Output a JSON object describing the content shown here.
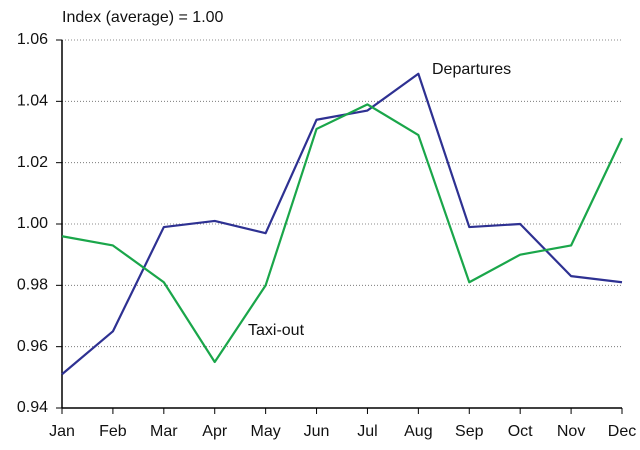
{
  "chart_data": {
    "type": "line",
    "y_axis_label": "Index (average) = 1.00",
    "categories": [
      "Jan",
      "Feb",
      "Mar",
      "Apr",
      "May",
      "Jun",
      "Jul",
      "Aug",
      "Sep",
      "Oct",
      "Nov",
      "Dec"
    ],
    "series": [
      {
        "name": "Departures",
        "color": "#2e3192",
        "values": [
          0.951,
          0.965,
          0.999,
          1.001,
          0.997,
          1.034,
          1.037,
          1.049,
          0.999,
          1.0,
          0.983,
          0.981
        ]
      },
      {
        "name": "Taxi-out",
        "color": "#1aa64a",
        "values": [
          0.996,
          0.993,
          0.981,
          0.955,
          0.98,
          1.031,
          1.039,
          1.029,
          0.981,
          0.99,
          0.993,
          1.028
        ]
      }
    ],
    "ylim": [
      0.94,
      1.06
    ],
    "yticks": [
      0.94,
      0.96,
      0.98,
      {
        "value": 1,
        "label": "1.00"
      },
      1.02,
      1.04,
      1.06
    ],
    "grid": true
  }
}
